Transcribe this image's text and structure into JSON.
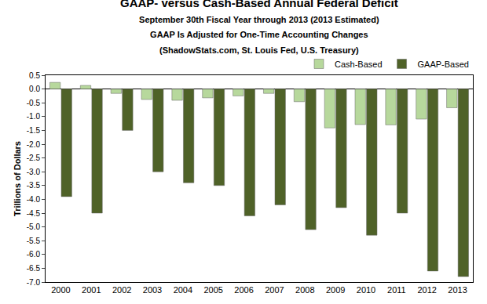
{
  "chart_data": {
    "type": "bar",
    "title": "GAAP- versus Cash-Based Annual Federal Deficit",
    "subtitle": [
      "September 30th Fiscal Year through 2013 (2013 Estimated)",
      "GAAP Is Adjusted for One-Time Accounting Changes",
      "(ShadowStats.com, St. Louis Fed, U.S. Treasury)"
    ],
    "y_label": "Trillions of Dollars",
    "categories": [
      "2000",
      "2001",
      "2002",
      "2003",
      "2004",
      "2005",
      "2006",
      "2007",
      "2008",
      "2009",
      "2010",
      "2011",
      "2012",
      "2013"
    ],
    "series": [
      {
        "name": "Cash-Based",
        "color": "#b7d89c",
        "values": [
          0.24,
          0.13,
          -0.16,
          -0.38,
          -0.41,
          -0.32,
          -0.25,
          -0.16,
          -0.46,
          -1.41,
          -1.29,
          -1.3,
          -1.09,
          -0.68
        ]
      },
      {
        "name": "GAAP-Based",
        "color": "#4f6228",
        "values": [
          -3.9,
          -4.5,
          -1.5,
          -3.0,
          -3.4,
          -3.5,
          -4.6,
          -4.2,
          -5.1,
          -4.3,
          -5.3,
          -4.5,
          -6.6,
          -6.8
        ]
      }
    ],
    "ylim": [
      -7.0,
      0.5
    ],
    "yticks": [
      0.5,
      {
        "value": 0,
        "label": "0.0"
      },
      -0.5,
      {
        "value": -1,
        "label": "-1.0"
      },
      -1.5,
      {
        "value": -2,
        "label": "-2.0"
      },
      -2.5,
      {
        "value": -3,
        "label": "-3.0"
      },
      -3.5,
      {
        "value": -4,
        "label": "-4.0"
      },
      -4.5,
      {
        "value": -5,
        "label": "-5.0"
      },
      -5.5,
      {
        "value": -6,
        "label": "-6.0"
      },
      -6.5,
      {
        "value": -7,
        "label": "-7.0"
      }
    ],
    "grid": false,
    "legend": "top"
  }
}
